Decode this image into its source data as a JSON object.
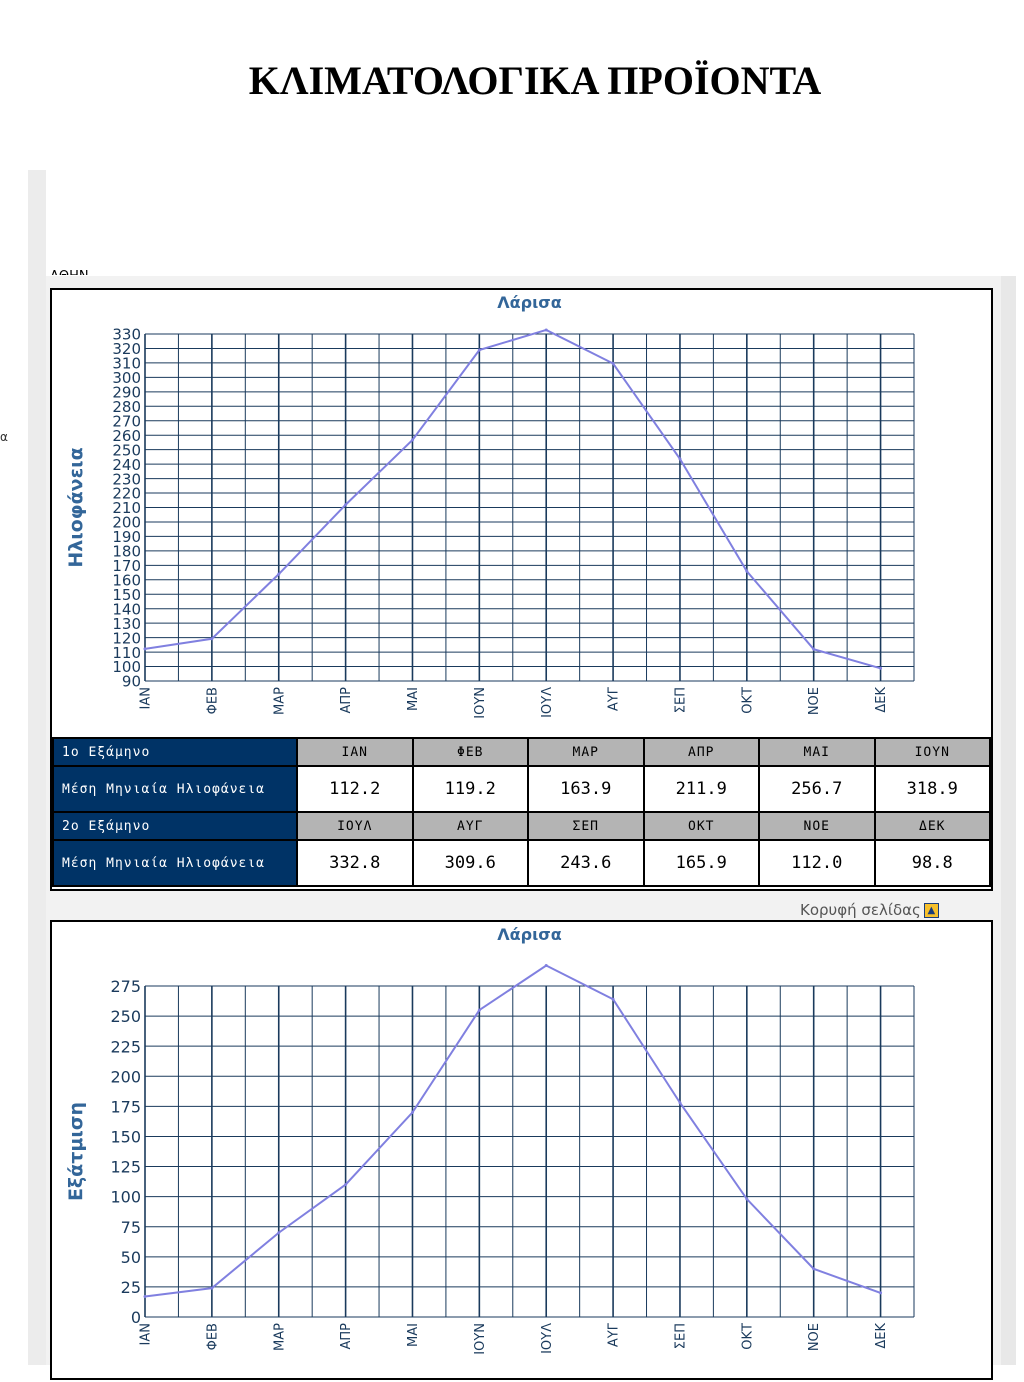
{
  "page": {
    "heading": "ΚΛΙΜΑΤΟΛΟΓΙΚΑ ΠΡΟΪΟΝΤΑ",
    "cut_text": "ΑΘΗΝ",
    "left_mark": "α"
  },
  "colors": {
    "line": "#8080e0",
    "grid": "#1a3a5c",
    "title": "#336699",
    "header_dark": "#003366",
    "month_row": "#b4b4b4"
  },
  "table": {
    "row1_label": "1ο Εξάμηνο",
    "row2_label": "Μέση Μηνιαία Ηλιοφάνεια",
    "row3_label": "2ο Εξάμηνο",
    "row4_label": "Μέση Μηνιαία Ηλιοφάνεια",
    "h1_months": [
      "ΙΑΝ",
      "ΦΕΒ",
      "ΜΑΡ",
      "ΑΠΡ",
      "ΜΑΙ",
      "ΙΟΥΝ"
    ],
    "h1_values": [
      "112.2",
      "119.2",
      "163.9",
      "211.9",
      "256.7",
      "318.9"
    ],
    "h2_months": [
      "ΙΟΥΛ",
      "ΑΥΓ",
      "ΣΕΠ",
      "ΟΚΤ",
      "ΝΟΕ",
      "ΔΕΚ"
    ],
    "h2_values": [
      "332.8",
      "309.6",
      "243.6",
      "165.9",
      "112.0",
      "98.8"
    ]
  },
  "top_link": {
    "label": "Κορυφή σελίδας",
    "icon": "up-arrow-icon"
  },
  "chart_data": [
    {
      "type": "line",
      "title": "Λάρισα",
      "ylabel": "Ηλιοφάνεια",
      "xlabel": "",
      "categories": [
        "ΙΑΝ",
        "ΦΕΒ",
        "ΜΑΡ",
        "ΑΠΡ",
        "ΜΑΙ",
        "ΙΟΥΝ",
        "ΙΟΥΛ",
        "ΑΥΓ",
        "ΣΕΠ",
        "ΟΚΤ",
        "ΝΟΕ",
        "ΔΕΚ"
      ],
      "values": [
        112.2,
        119.2,
        163.9,
        211.9,
        256.7,
        318.9,
        332.8,
        309.6,
        243.6,
        165.9,
        112.0,
        98.8
      ],
      "ylim": [
        90,
        330
      ],
      "ytick_step": 10,
      "grid": true
    },
    {
      "type": "line",
      "title": "Λάρισα",
      "ylabel": "Εξάτμιση",
      "xlabel": "",
      "categories": [
        "ΙΑΝ",
        "ΦΕΒ",
        "ΜΑΡ",
        "ΑΠΡ",
        "ΜΑΙ",
        "ΙΟΥΝ",
        "ΙΟΥΛ",
        "ΑΥΓ",
        "ΣΕΠ",
        "ΟΚΤ",
        "ΝΟΕ",
        "ΔΕΚ"
      ],
      "values": [
        17,
        24,
        70,
        110,
        170,
        255,
        292,
        264,
        178,
        98,
        40,
        20
      ],
      "ylim": [
        0,
        275
      ],
      "ytick_step": 25,
      "grid": true
    }
  ]
}
